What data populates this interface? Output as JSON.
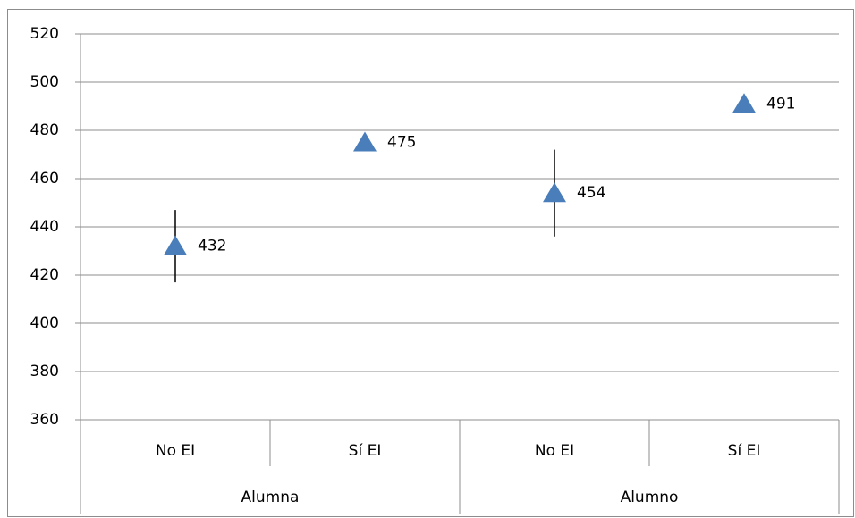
{
  "chart_data": {
    "type": "scatter",
    "categories": [
      "No EI",
      "Sí EI",
      "No EI",
      "Sí EI"
    ],
    "groups": [
      "Alumna",
      "Alumno"
    ],
    "values": [
      432,
      475,
      454,
      491
    ],
    "errors": [
      15,
      3,
      18,
      1
    ],
    "color": "#4a7ebb",
    "ylim": [
      360,
      520
    ],
    "yticks": [
      360,
      380,
      400,
      420,
      440,
      460,
      480,
      500,
      520
    ],
    "grid": true
  }
}
